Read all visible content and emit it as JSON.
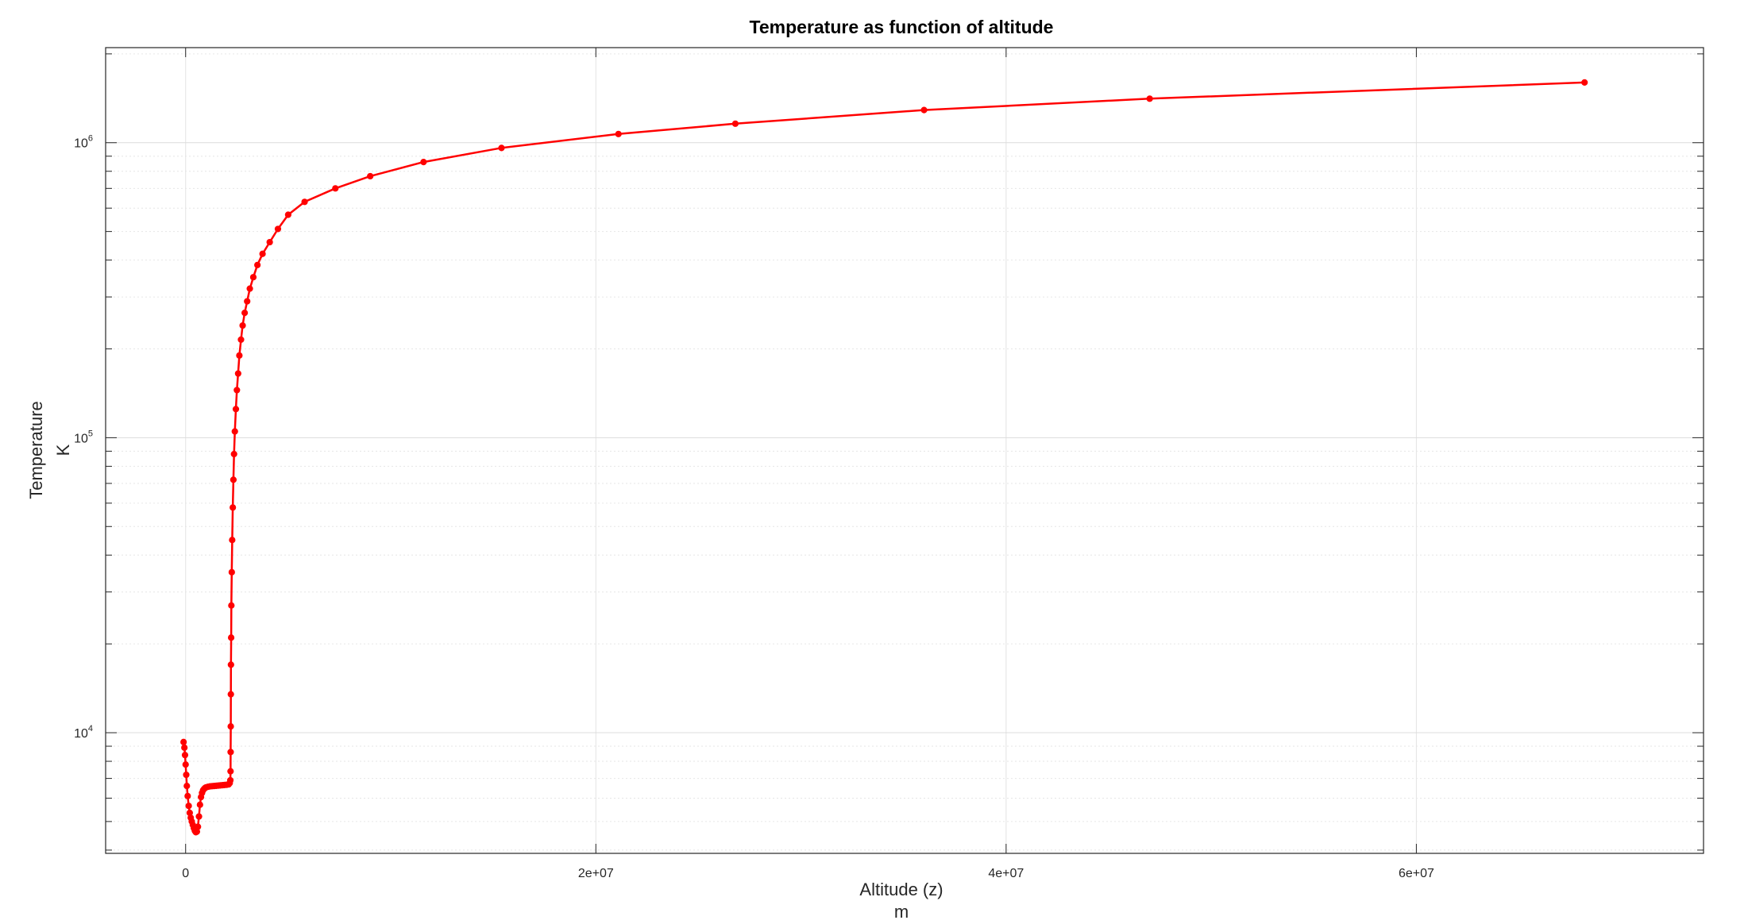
{
  "chart_data": {
    "type": "line",
    "title": "Temperature as function of altitude",
    "xlabel": [
      "Altitude (z)",
      "m"
    ],
    "ylabel": [
      "Temperature",
      "K"
    ],
    "xlim": [
      -3900000,
      74000000
    ],
    "ylim": [
      3900,
      2100000
    ],
    "yscale": "log",
    "grid": true,
    "x_ticks": [
      0,
      20000000,
      40000000,
      60000000
    ],
    "x_tick_labels": [
      "0",
      "2e+07",
      "4e+07",
      "6e+07"
    ],
    "y_ticks": [
      10000,
      100000,
      1000000
    ],
    "y_tick_labels": [
      {
        "base": "10",
        "exp": "4"
      },
      {
        "base": "10",
        "exp": "5"
      },
      {
        "base": "10",
        "exp": "6"
      }
    ],
    "series": [
      {
        "color": "#ff0000",
        "marker": "circle",
        "x": [
          -100000,
          -60000,
          -30000,
          0,
          30000,
          60000,
          100000,
          150000,
          200000,
          250000,
          300000,
          350000,
          400000,
          450000,
          500000,
          550000,
          600000,
          650000,
          700000,
          750000,
          800000,
          850000,
          900000,
          950000,
          1000000,
          1100000,
          1200000,
          1300000,
          1400000,
          1500000,
          1600000,
          1700000,
          1800000,
          1900000,
          2000000,
          2100000,
          2150000,
          2180000,
          2190000,
          2195000,
          2200000,
          2205000,
          2210000,
          2220000,
          2230000,
          2250000,
          2270000,
          2300000,
          2330000,
          2360000,
          2400000,
          2450000,
          2500000,
          2560000,
          2620000,
          2700000,
          2780000,
          2880000,
          3000000,
          3130000,
          3300000,
          3500000,
          3750000,
          4100000,
          4500000,
          5000000,
          5800000,
          7300000,
          9000000,
          11600000,
          15400000,
          21100000,
          26800000,
          36000000,
          47000000,
          68200000
        ],
        "y": [
          9300,
          8900,
          8400,
          7800,
          7200,
          6600,
          6100,
          5650,
          5350,
          5150,
          5000,
          4870,
          4750,
          4650,
          4600,
          4620,
          4800,
          5200,
          5700,
          6050,
          6250,
          6380,
          6450,
          6500,
          6530,
          6560,
          6580,
          6590,
          6600,
          6610,
          6620,
          6630,
          6640,
          6650,
          6660,
          6680,
          6750,
          6900,
          7400,
          8600,
          10500,
          13500,
          17000,
          21000,
          27000,
          35000,
          45000,
          58000,
          72000,
          88000,
          105000,
          125000,
          145000,
          165000,
          190000,
          215000,
          240000,
          265000,
          290000,
          320000,
          350000,
          385000,
          420000,
          460000,
          510000,
          570000,
          630000,
          700000,
          770000,
          860000,
          960000,
          1070000,
          1160000,
          1290000,
          1410000,
          1600000
        ]
      }
    ]
  }
}
